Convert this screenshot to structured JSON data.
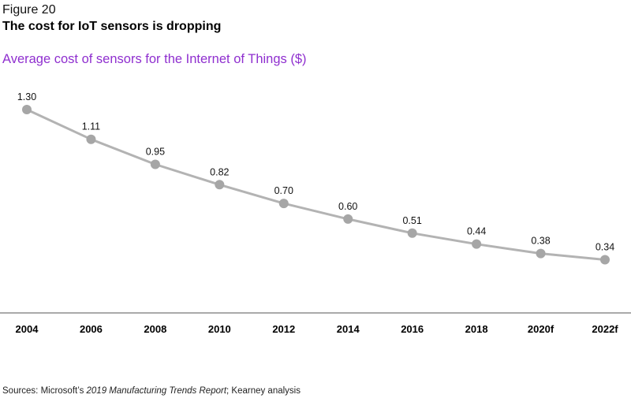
{
  "figure_label": "Figure 20",
  "title": "The cost for IoT sensors is dropping",
  "subtitle": "Average cost of sensors for the Internet of Things ($)",
  "source": {
    "prefix": "Sources: Microsoft’s ",
    "report": "2019 Manufacturing Trends Report",
    "suffix": "; Kearney analysis"
  },
  "colors": {
    "line": "#b3b3b3",
    "marker": "#a6a6a6",
    "subtitle": "#8f2fcf",
    "axis": "#555555"
  },
  "chart_data": {
    "type": "line",
    "title": "Average cost of sensors for the Internet of Things ($)",
    "xlabel": "",
    "ylabel": "",
    "categories": [
      "2004",
      "2006",
      "2008",
      "2010",
      "2012",
      "2014",
      "2016",
      "2018",
      "2020f",
      "2022f"
    ],
    "series": [
      {
        "name": "Average cost of sensors ($)",
        "values": [
          1.3,
          1.11,
          0.95,
          0.82,
          0.7,
          0.6,
          0.51,
          0.44,
          0.38,
          0.34
        ],
        "labels": [
          "1.30",
          "1.11",
          "0.95",
          "0.82",
          "0.70",
          "0.60",
          "0.51",
          "0.44",
          "0.38",
          "0.34"
        ]
      }
    ],
    "ylim": [
      0,
      1.3
    ],
    "grid": false,
    "legend": "none"
  }
}
